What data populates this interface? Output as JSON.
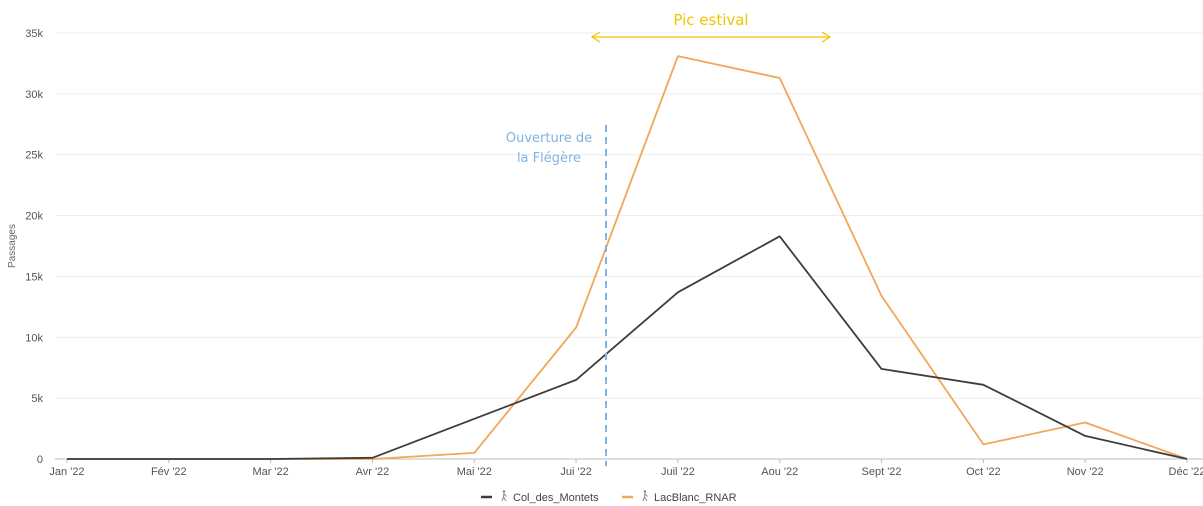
{
  "chart_data": {
    "type": "line",
    "categories": [
      "Jan '22",
      "Fév '22",
      "Mar '22",
      "Avr '22",
      "Mai '22",
      "Jui '22",
      "Juil '22",
      "Aou '22",
      "Sept '22",
      "Oct '22",
      "Nov '22",
      "Déc '22"
    ],
    "series": [
      {
        "name": "Col_des_Montets",
        "color": "#3d3d3d",
        "values": [
          0,
          0,
          0,
          100,
          3300,
          6500,
          13700,
          18300,
          7400,
          6100,
          1900,
          0
        ]
      },
      {
        "name": "LacBlanc_RNAR",
        "color": "#f2a65a",
        "values": [
          0,
          0,
          0,
          0,
          500,
          10800,
          33100,
          31300,
          13400,
          1200,
          3000,
          0
        ]
      }
    ],
    "ylabel": "Passages",
    "xlabel": "",
    "ylim": [
      0,
      35000
    ],
    "yticks": [
      {
        "v": 0,
        "label": "0"
      },
      {
        "v": 5000,
        "label": "5k"
      },
      {
        "v": 10000,
        "label": "10k"
      },
      {
        "v": 15000,
        "label": "15k"
      },
      {
        "v": 20000,
        "label": "20k"
      },
      {
        "v": 25000,
        "label": "25k"
      },
      {
        "v": 30000,
        "label": "30k"
      },
      {
        "v": 35000,
        "label": "35k"
      }
    ],
    "grid": true,
    "legend_position": "bottom-center",
    "legend_icon": "hiker-icon",
    "annotations": {
      "summer_peak": {
        "text": "Pic estival",
        "from": "Jui '22",
        "to": "Aou '22",
        "color": "#f2c300"
      },
      "opening": {
        "lines": [
          "Ouverture de",
          "la Flégère"
        ],
        "at": "between Jui '22 and Juil '22",
        "color": "#7fb3e6"
      }
    }
  }
}
